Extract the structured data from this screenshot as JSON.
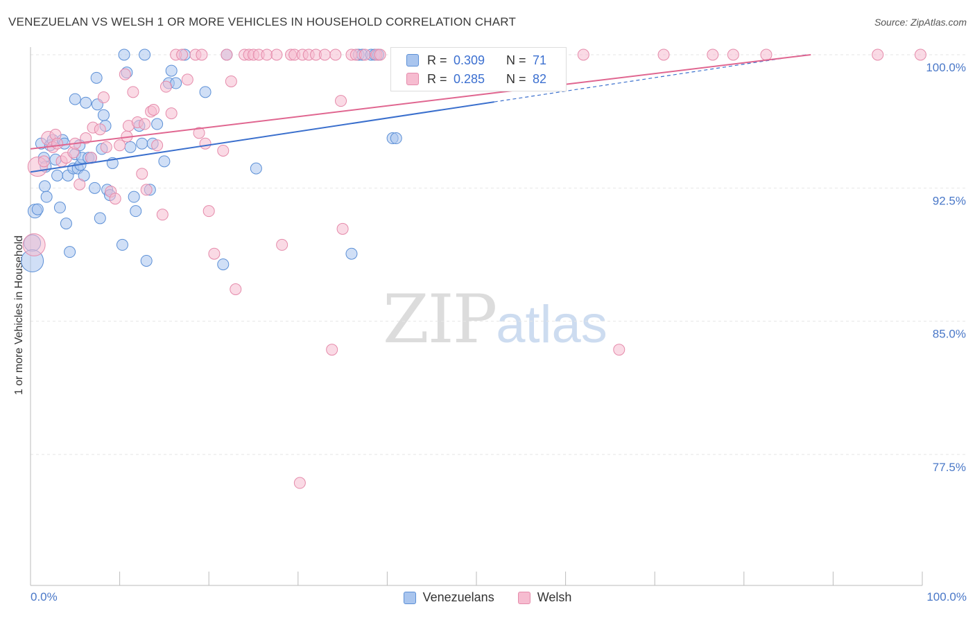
{
  "header": {
    "title": "VENEZUELAN VS WELSH 1 OR MORE VEHICLES IN HOUSEHOLD CORRELATION CHART",
    "source": "Source: ZipAtlas.com"
  },
  "watermark": {
    "zip": "ZIP",
    "atlas": "atlas"
  },
  "legend": {
    "r_label": "R =",
    "n_label": "N =",
    "venezuelans": {
      "r": "0.309",
      "n": "71"
    },
    "welsh": {
      "r": "0.285",
      "n": "82"
    }
  },
  "bottom_legend": {
    "venezuelans": "Venezuelans",
    "welsh": "Welsh"
  },
  "axes": {
    "x_min_label": "0.0%",
    "x_max_label": "100.0%"
  },
  "colors": {
    "venezuelans_fill": "#a9c5ee",
    "venezuelans_stroke": "#5b8fd6",
    "venezuelans_line": "#3a6fcd",
    "welsh_fill": "#f6bcd0",
    "welsh_stroke": "#e58aaa",
    "welsh_line": "#e06690",
    "grid": "#e6e6e6"
  },
  "chart_data": {
    "type": "scatter",
    "title": "VENEZUELAN VS WELSH 1 OR MORE VEHICLES IN HOUSEHOLD CORRELATION CHART",
    "xlabel": "",
    "ylabel": "1 or more Vehicles in Household",
    "xlim": [
      0,
      100
    ],
    "ylim": [
      70.0,
      100.6
    ],
    "y_ticks": [
      77.5,
      85.0,
      92.5,
      100.0
    ],
    "y_tick_labels": [
      "77.5%",
      "85.0%",
      "92.5%",
      "100.0%"
    ],
    "x_tick_labels": [
      "0.0%",
      "100.0%"
    ],
    "series": [
      {
        "name": "Venezuelans",
        "R": 0.309,
        "N": 71,
        "trend": {
          "x0": 0,
          "y0": 93.4,
          "x1": 87,
          "y1": 100.0,
          "solid_to_x": 52
        },
        "points": [
          [
            0.2,
            89.4,
            12
          ],
          [
            0.2,
            88.4,
            16
          ],
          [
            0.5,
            91.2,
            10
          ],
          [
            0.8,
            91.3,
            8
          ],
          [
            1.2,
            95.0,
            8
          ],
          [
            1.5,
            94.2,
            8
          ],
          [
            1.6,
            92.6,
            8
          ],
          [
            1.7,
            93.7,
            8
          ],
          [
            1.8,
            92.0,
            8
          ],
          [
            2.2,
            94.9,
            8
          ],
          [
            2.5,
            95.2,
            8
          ],
          [
            2.8,
            94.1,
            8
          ],
          [
            3.0,
            93.2,
            8
          ],
          [
            3.3,
            91.4,
            8
          ],
          [
            3.6,
            95.2,
            8
          ],
          [
            3.8,
            95.0,
            8
          ],
          [
            4.0,
            90.5,
            8
          ],
          [
            4.2,
            93.2,
            8
          ],
          [
            4.4,
            88.9,
            8
          ],
          [
            4.8,
            93.6,
            8
          ],
          [
            5.0,
            94.4,
            8
          ],
          [
            5.0,
            97.5,
            8
          ],
          [
            5.3,
            93.6,
            8
          ],
          [
            5.5,
            94.9,
            8
          ],
          [
            5.6,
            93.8,
            8
          ],
          [
            5.8,
            94.2,
            8
          ],
          [
            6.0,
            93.2,
            8
          ],
          [
            6.2,
            97.3,
            8
          ],
          [
            6.5,
            94.2,
            8
          ],
          [
            6.8,
            94.2,
            8
          ],
          [
            7.2,
            92.5,
            8
          ],
          [
            7.4,
            98.7,
            8
          ],
          [
            7.5,
            97.2,
            8
          ],
          [
            7.8,
            90.8,
            8
          ],
          [
            8.0,
            94.7,
            8
          ],
          [
            8.2,
            96.6,
            8
          ],
          [
            8.4,
            96.0,
            8
          ],
          [
            8.6,
            92.4,
            8
          ],
          [
            8.9,
            92.1,
            8
          ],
          [
            9.2,
            93.9,
            8
          ],
          [
            10.3,
            89.3,
            8
          ],
          [
            10.5,
            100.0,
            8
          ],
          [
            10.8,
            99.0,
            8
          ],
          [
            11.2,
            94.8,
            8
          ],
          [
            11.6,
            92.0,
            8
          ],
          [
            11.8,
            91.2,
            8
          ],
          [
            12.2,
            96.0,
            8
          ],
          [
            12.5,
            95.0,
            8
          ],
          [
            12.8,
            100.0,
            8
          ],
          [
            13.0,
            88.4,
            8
          ],
          [
            13.4,
            92.4,
            8
          ],
          [
            13.7,
            95.0,
            8
          ],
          [
            14.2,
            96.1,
            8
          ],
          [
            15.0,
            94.0,
            8
          ],
          [
            15.5,
            98.4,
            8
          ],
          [
            15.8,
            99.1,
            8
          ],
          [
            16.3,
            98.4,
            8
          ],
          [
            17.3,
            100.0,
            8
          ],
          [
            19.6,
            97.9,
            8
          ],
          [
            21.6,
            88.2,
            8
          ],
          [
            22.0,
            100.0,
            8
          ],
          [
            25.3,
            93.6,
            8
          ],
          [
            36.0,
            88.8,
            8
          ],
          [
            36.8,
            100.0,
            8
          ],
          [
            37.2,
            100.0,
            8
          ],
          [
            38.2,
            100.0,
            8
          ],
          [
            38.6,
            100.0,
            8
          ],
          [
            39.0,
            100.0,
            8
          ],
          [
            40.6,
            95.3,
            8
          ],
          [
            41.0,
            95.3,
            8
          ],
          [
            51.0,
            100.0,
            8
          ]
        ]
      },
      {
        "name": "Welsh",
        "R": 0.285,
        "N": 82,
        "trend": {
          "x0": 0,
          "y0": 94.7,
          "x1": 87.5,
          "y1": 100.0
        },
        "points": [
          [
            0.4,
            89.3,
            16
          ],
          [
            0.8,
            93.7,
            14
          ],
          [
            1.5,
            94.0,
            8
          ],
          [
            2.0,
            95.3,
            10
          ],
          [
            2.5,
            94.8,
            8
          ],
          [
            2.8,
            95.5,
            8
          ],
          [
            3.0,
            95.0,
            8
          ],
          [
            3.5,
            94.0,
            8
          ],
          [
            4.0,
            94.2,
            8
          ],
          [
            4.8,
            94.5,
            8
          ],
          [
            5.0,
            95.0,
            8
          ],
          [
            5.5,
            92.7,
            8
          ],
          [
            6.2,
            95.3,
            8
          ],
          [
            6.8,
            94.2,
            8
          ],
          [
            7.0,
            95.9,
            8
          ],
          [
            7.8,
            95.8,
            8
          ],
          [
            8.2,
            97.6,
            8
          ],
          [
            8.5,
            94.8,
            8
          ],
          [
            9.0,
            92.3,
            8
          ],
          [
            9.5,
            91.9,
            8
          ],
          [
            10.0,
            94.9,
            8
          ],
          [
            10.6,
            98.9,
            8
          ],
          [
            10.8,
            95.4,
            8
          ],
          [
            11.0,
            96.0,
            8
          ],
          [
            11.5,
            97.9,
            8
          ],
          [
            12.0,
            96.2,
            8
          ],
          [
            12.5,
            93.3,
            8
          ],
          [
            12.8,
            96.1,
            8
          ],
          [
            13.0,
            92.4,
            8
          ],
          [
            13.5,
            96.8,
            8
          ],
          [
            13.8,
            96.9,
            8
          ],
          [
            14.2,
            94.9,
            8
          ],
          [
            14.8,
            91.0,
            8
          ],
          [
            15.2,
            98.2,
            8
          ],
          [
            15.8,
            96.7,
            8
          ],
          [
            16.3,
            100.0,
            8
          ],
          [
            17.0,
            100.0,
            8
          ],
          [
            17.6,
            98.6,
            8
          ],
          [
            18.5,
            100.0,
            8
          ],
          [
            18.9,
            95.6,
            8
          ],
          [
            19.2,
            100.0,
            8
          ],
          [
            19.6,
            95.0,
            8
          ],
          [
            20.0,
            91.2,
            8
          ],
          [
            20.6,
            88.8,
            8
          ],
          [
            21.6,
            94.6,
            8
          ],
          [
            22.0,
            100.0,
            8
          ],
          [
            22.5,
            98.5,
            8
          ],
          [
            23.0,
            86.8,
            8
          ],
          [
            24.0,
            100.0,
            8
          ],
          [
            24.5,
            100.0,
            8
          ],
          [
            25.0,
            100.0,
            8
          ],
          [
            25.6,
            100.0,
            8
          ],
          [
            26.5,
            100.0,
            8
          ],
          [
            27.6,
            100.0,
            8
          ],
          [
            28.2,
            89.3,
            8
          ],
          [
            29.2,
            100.0,
            8
          ],
          [
            29.6,
            100.0,
            8
          ],
          [
            30.5,
            100.0,
            8
          ],
          [
            31.2,
            100.0,
            8
          ],
          [
            32.0,
            100.0,
            8
          ],
          [
            33.0,
            100.0,
            8
          ],
          [
            33.8,
            83.4,
            8
          ],
          [
            34.2,
            100.0,
            8
          ],
          [
            30.2,
            75.9,
            8
          ],
          [
            34.8,
            97.4,
            8
          ],
          [
            35.0,
            90.2,
            8
          ],
          [
            36.0,
            100.0,
            8
          ],
          [
            36.5,
            100.0,
            8
          ],
          [
            37.5,
            100.0,
            8
          ],
          [
            38.8,
            100.0,
            8
          ],
          [
            39.2,
            100.0,
            8
          ],
          [
            45.0,
            100.0,
            8
          ],
          [
            48.8,
            100.0,
            8
          ],
          [
            53.5,
            100.0,
            8
          ],
          [
            62.0,
            100.0,
            8
          ],
          [
            66.0,
            83.4,
            8
          ],
          [
            71.0,
            100.0,
            8
          ],
          [
            76.5,
            100.0,
            8
          ],
          [
            78.8,
            100.0,
            8
          ],
          [
            82.5,
            100.0,
            8
          ],
          [
            95.0,
            100.0,
            8
          ],
          [
            99.8,
            100.0,
            8
          ]
        ]
      }
    ]
  }
}
